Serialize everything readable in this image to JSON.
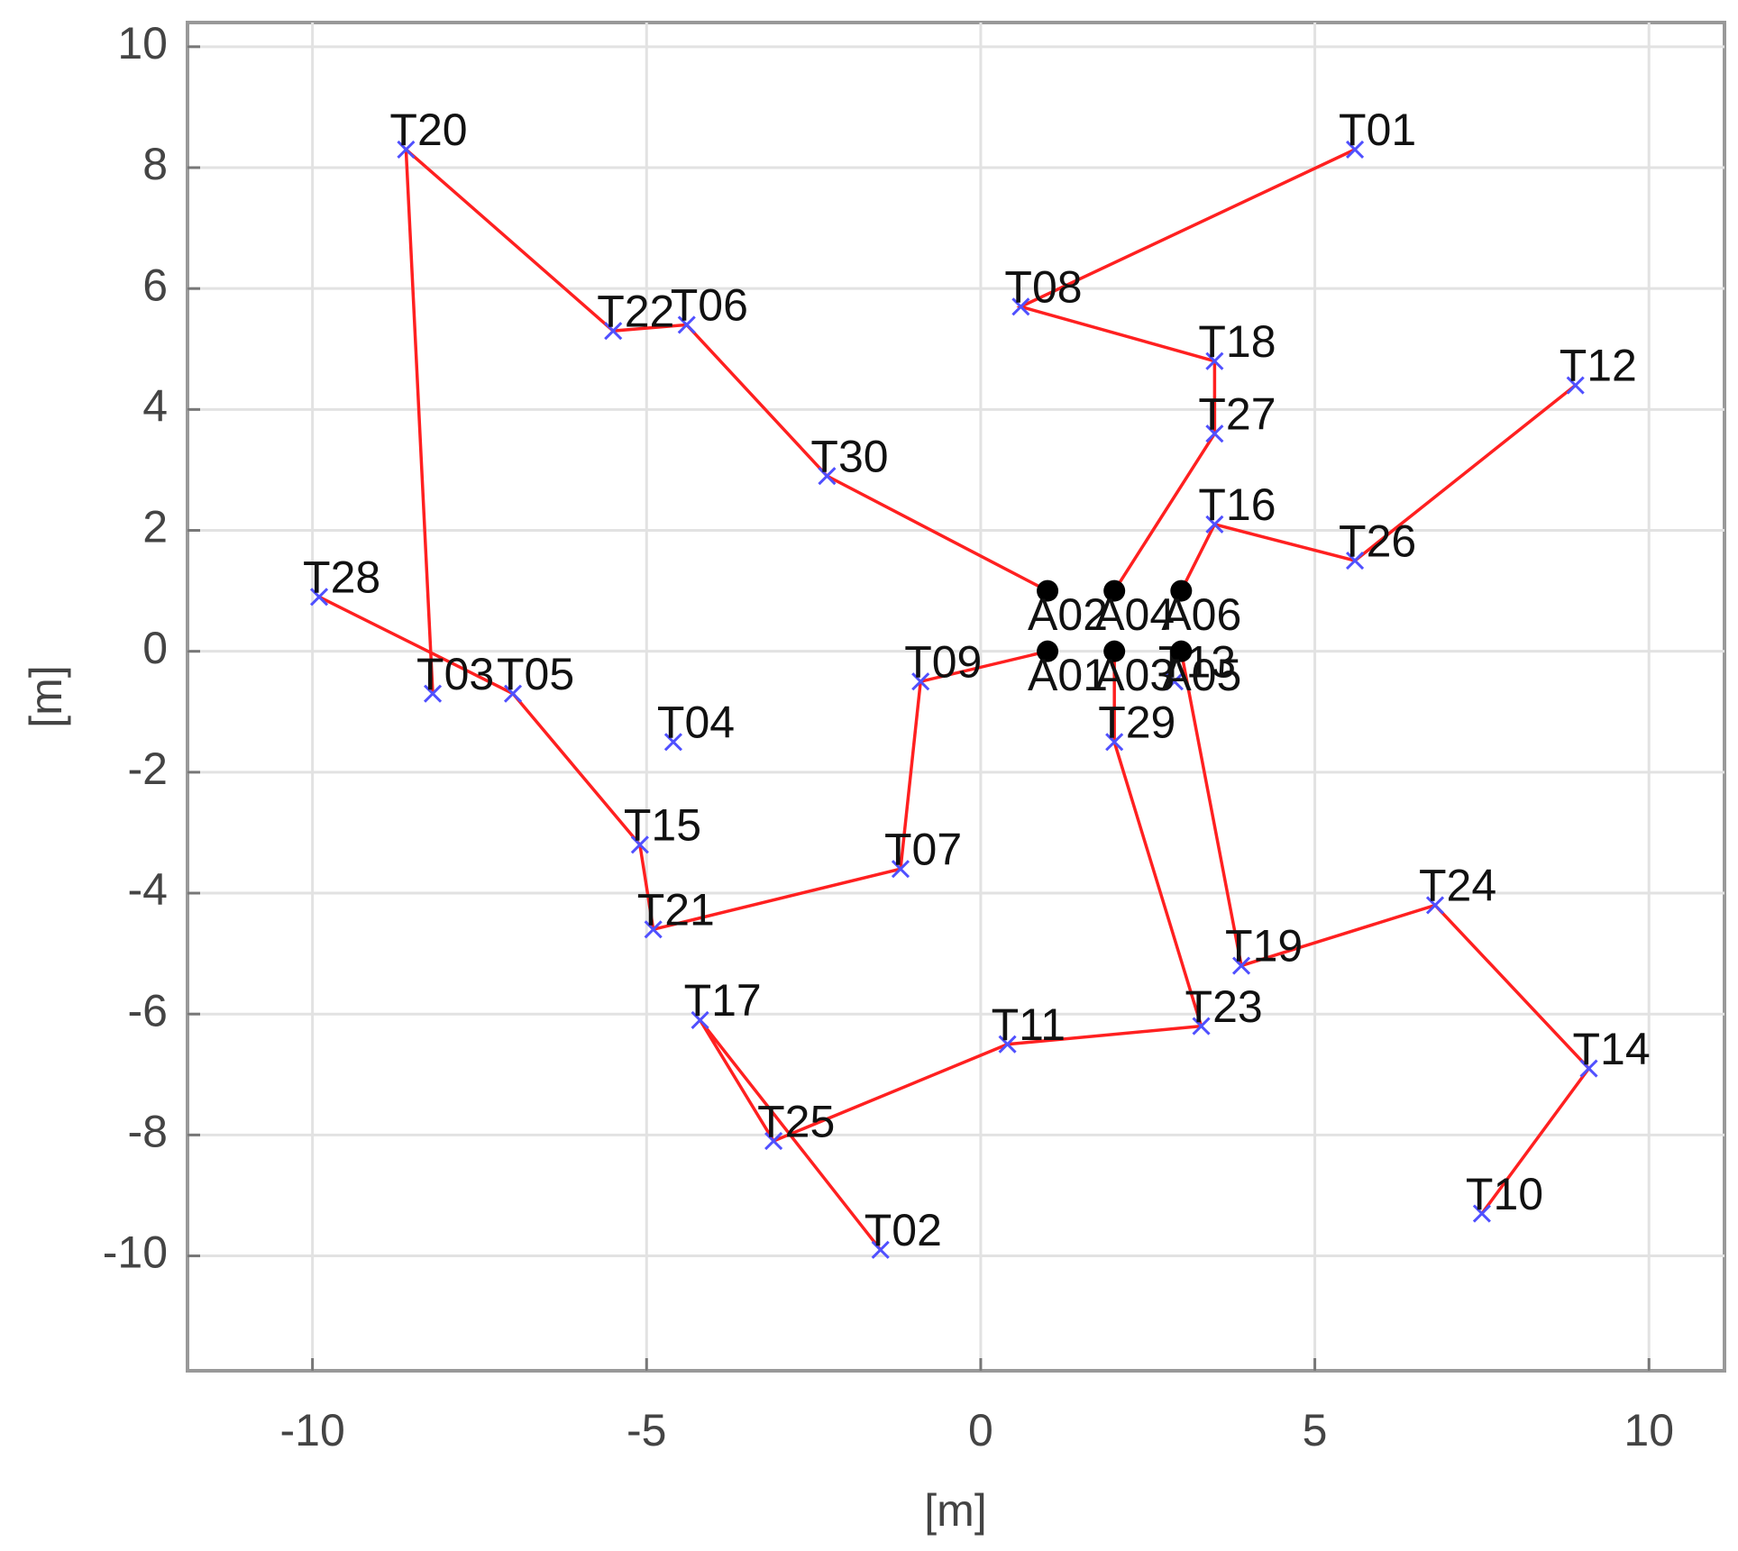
{
  "chart_data": {
    "type": "scatter",
    "xlabel": "[m]",
    "ylabel": "[m]",
    "xlim": [
      -11.87,
      11.13
    ],
    "ylim": [
      -11.9,
      10.4
    ],
    "xticks": [
      -10,
      -5,
      0,
      5,
      10
    ],
    "yticks": [
      -10,
      -8,
      -6,
      -4,
      -2,
      0,
      2,
      4,
      6,
      8,
      10
    ],
    "grid": true,
    "tags": {
      "color": "#5050ff",
      "labels": [
        "T01",
        "T02",
        "T03",
        "T04",
        "T05",
        "T06",
        "T07",
        "T08",
        "T09",
        "T10",
        "T11",
        "T12",
        "T13",
        "T14",
        "T15",
        "T16",
        "T17",
        "T18",
        "T19",
        "T20",
        "T21",
        "T22",
        "T23",
        "T24",
        "T25",
        "T26",
        "T27",
        "T28",
        "T29",
        "T30"
      ],
      "x": [
        5.6,
        -1.5,
        -8.2,
        -4.6,
        -7.0,
        -4.4,
        -1.2,
        0.6,
        -0.9,
        7.5,
        0.4,
        8.9,
        2.9,
        9.1,
        -5.1,
        3.5,
        -4.2,
        3.5,
        3.9,
        -8.6,
        -4.9,
        -5.5,
        3.3,
        6.8,
        -3.1,
        5.6,
        3.5,
        -9.9,
        2.0,
        -2.3
      ],
      "y": [
        8.3,
        -9.9,
        -0.7,
        -1.5,
        -0.7,
        5.4,
        -3.6,
        5.7,
        -0.5,
        -9.3,
        -6.5,
        4.4,
        -0.5,
        -6.9,
        -3.2,
        2.1,
        -6.1,
        4.8,
        -5.2,
        8.3,
        -4.6,
        5.3,
        -6.2,
        -4.2,
        -8.1,
        1.5,
        3.6,
        0.9,
        -1.5,
        2.9
      ]
    },
    "anchors": {
      "color": "#000000",
      "labels": [
        "A01",
        "A02",
        "A03",
        "A04",
        "A05",
        "A06"
      ],
      "x": [
        1,
        1,
        2,
        2,
        3,
        3
      ],
      "y": [
        0,
        1,
        0,
        1,
        0,
        1
      ]
    },
    "paths": [
      {
        "color": "#ff2020",
        "x": [
          5.6,
          0.6,
          3.5,
          3.5,
          2
        ],
        "y": [
          8.3,
          5.7,
          4.8,
          3.6,
          1
        ]
      },
      {
        "color": "#ff2020",
        "x": [
          7.5,
          9.1,
          6.8,
          3.9,
          3
        ],
        "y": [
          -9.3,
          -6.9,
          -4.2,
          -5.2,
          0
        ]
      },
      {
        "color": "#ff2020",
        "x": [
          8.9,
          5.6,
          3.5,
          3
        ],
        "y": [
          4.4,
          1.5,
          2.1,
          1
        ]
      },
      {
        "color": "#ff2020",
        "x": [
          -8.2,
          -8.6,
          -5.5,
          -4.4,
          -2.3,
          1
        ],
        "y": [
          -0.7,
          8.3,
          5.3,
          5.4,
          2.9,
          1
        ]
      },
      {
        "color": "#ff2020",
        "x": [
          -9.9,
          -7.0,
          -5.1,
          -4.9,
          -1.2,
          -0.9,
          1
        ],
        "y": [
          0.9,
          -0.7,
          -3.2,
          -4.6,
          -3.6,
          -0.5,
          0
        ]
      },
      {
        "color": "#ff2020",
        "x": [
          -1.5,
          -4.2,
          -3.1,
          0.4,
          3.3,
          2.0,
          2
        ],
        "y": [
          -9.9,
          -6.1,
          -8.1,
          -6.5,
          -6.2,
          -1.5,
          0
        ]
      }
    ]
  }
}
